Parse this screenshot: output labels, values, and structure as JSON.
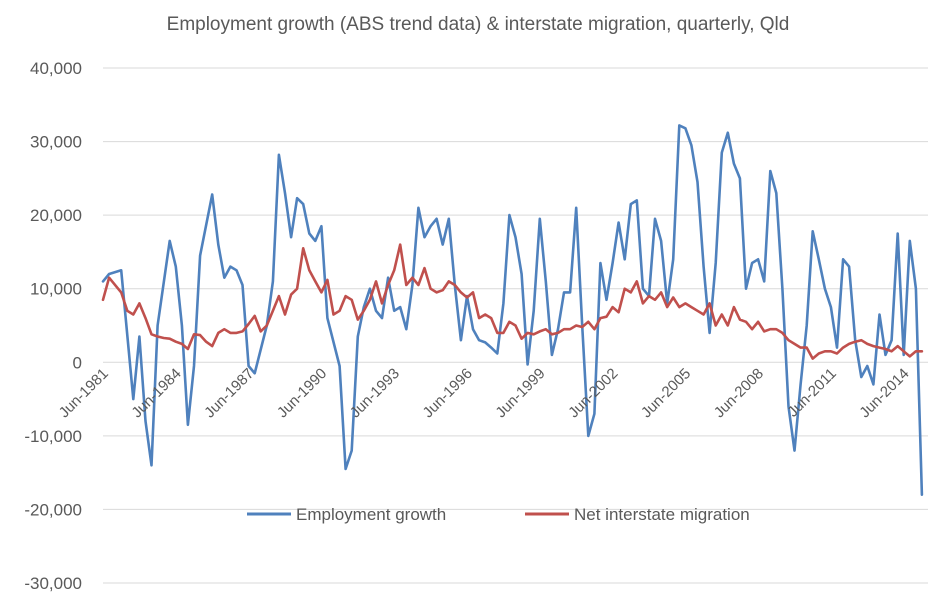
{
  "chart_data": {
    "type": "line",
    "title": "Employment growth (ABS trend data) & interstate migration, quarterly, Qld",
    "xlabel": "",
    "ylabel": "",
    "ylim": [
      -30000,
      40000
    ],
    "yticks": [
      40000,
      30000,
      20000,
      10000,
      0,
      -10000,
      -20000,
      -30000
    ],
    "ytick_labels": [
      "40,000",
      "30,000",
      "20,000",
      "10,000",
      "0",
      "-10,000",
      "-20,000",
      "-30,000"
    ],
    "xlim": [
      1981.25,
      2015.25
    ],
    "xticks": [
      1981.5,
      1984.5,
      1987.5,
      1990.5,
      1993.5,
      1996.5,
      1999.5,
      2002.5,
      2005.5,
      2008.5,
      2011.5,
      2014.5
    ],
    "xtick_labels": [
      "Jun-1981",
      "Jun-1984",
      "Jun-1987",
      "Jun-1990",
      "Jun-1993",
      "Jun-1996",
      "Jun-1999",
      "Jun-2002",
      "Jun-2005",
      "Jun-2008",
      "Jun-2011",
      "Jun-2014"
    ],
    "grid": true,
    "legend": "inside-bottom",
    "series": [
      {
        "name": "Employment growth",
        "color": "#4f81bd",
        "points": [
          [
            1981.25,
            11000
          ],
          [
            1981.5,
            12000
          ],
          [
            1982.0,
            12500
          ],
          [
            1982.5,
            -5000
          ],
          [
            1982.75,
            3500
          ],
          [
            1983.0,
            -8000
          ],
          [
            1983.25,
            -14000
          ],
          [
            1983.5,
            5000
          ],
          [
            1984.0,
            16500
          ],
          [
            1984.25,
            13000
          ],
          [
            1984.5,
            5000
          ],
          [
            1984.75,
            -8500
          ],
          [
            1985.0,
            -500
          ],
          [
            1985.25,
            14500
          ],
          [
            1985.75,
            22800
          ],
          [
            1986.0,
            16000
          ],
          [
            1986.25,
            11500
          ],
          [
            1986.5,
            13000
          ],
          [
            1986.75,
            12500
          ],
          [
            1987.0,
            10500
          ],
          [
            1987.25,
            -500
          ],
          [
            1987.5,
            -1500
          ],
          [
            1988.0,
            5000
          ],
          [
            1988.25,
            11000
          ],
          [
            1988.5,
            28200
          ],
          [
            1988.75,
            23000
          ],
          [
            1989.0,
            17000
          ],
          [
            1989.25,
            22300
          ],
          [
            1989.5,
            21500
          ],
          [
            1989.75,
            17500
          ],
          [
            1990.0,
            16500
          ],
          [
            1990.25,
            18500
          ],
          [
            1990.5,
            6000
          ],
          [
            1991.0,
            -500
          ],
          [
            1991.25,
            -14500
          ],
          [
            1991.5,
            -12000
          ],
          [
            1991.75,
            3500
          ],
          [
            1992.0,
            7500
          ],
          [
            1992.25,
            10000
          ],
          [
            1992.5,
            7000
          ],
          [
            1992.75,
            6000
          ],
          [
            1993.0,
            11500
          ],
          [
            1993.25,
            7000
          ],
          [
            1993.5,
            7500
          ],
          [
            1993.75,
            4500
          ],
          [
            1994.0,
            10500
          ],
          [
            1994.25,
            21000
          ],
          [
            1994.5,
            17000
          ],
          [
            1994.75,
            18500
          ],
          [
            1995.0,
            19500
          ],
          [
            1995.25,
            16000
          ],
          [
            1995.5,
            19500
          ],
          [
            1995.75,
            10500
          ],
          [
            1996.0,
            3000
          ],
          [
            1996.25,
            9000
          ],
          [
            1996.5,
            4500
          ],
          [
            1996.75,
            3000
          ],
          [
            1997.0,
            2700
          ],
          [
            1997.25,
            2000
          ],
          [
            1997.5,
            1200
          ],
          [
            1997.75,
            8000
          ],
          [
            1998.0,
            20000
          ],
          [
            1998.25,
            17000
          ],
          [
            1998.5,
            12000
          ],
          [
            1998.75,
            -300
          ],
          [
            1999.0,
            7000
          ],
          [
            1999.25,
            19500
          ],
          [
            1999.5,
            11000
          ],
          [
            1999.75,
            1000
          ],
          [
            2000.0,
            4500
          ],
          [
            2000.25,
            9500
          ],
          [
            2000.5,
            9500
          ],
          [
            2000.75,
            21000
          ],
          [
            2001.0,
            5000
          ],
          [
            2001.25,
            -10000
          ],
          [
            2001.5,
            -7000
          ],
          [
            2001.75,
            13500
          ],
          [
            2002.0,
            8500
          ],
          [
            2002.25,
            13500
          ],
          [
            2002.5,
            19000
          ],
          [
            2002.75,
            14000
          ],
          [
            2003.0,
            21500
          ],
          [
            2003.25,
            22000
          ],
          [
            2003.5,
            10000
          ],
          [
            2003.75,
            9000
          ],
          [
            2004.0,
            19500
          ],
          [
            2004.25,
            16500
          ],
          [
            2004.5,
            8000
          ],
          [
            2004.75,
            14000
          ],
          [
            2005.0,
            32200
          ],
          [
            2005.25,
            31800
          ],
          [
            2005.5,
            29500
          ],
          [
            2005.75,
            24500
          ],
          [
            2006.0,
            13000
          ],
          [
            2006.25,
            4000
          ],
          [
            2006.5,
            13500
          ],
          [
            2006.75,
            28500
          ],
          [
            2007.0,
            31200
          ],
          [
            2007.25,
            27000
          ],
          [
            2007.5,
            25000
          ],
          [
            2007.75,
            10000
          ],
          [
            2008.0,
            13500
          ],
          [
            2008.25,
            14000
          ],
          [
            2008.5,
            11000
          ],
          [
            2008.75,
            26000
          ],
          [
            2009.0,
            23000
          ],
          [
            2009.25,
            10000
          ],
          [
            2009.5,
            -6000
          ],
          [
            2009.75,
            -12000
          ],
          [
            2010.0,
            -3000
          ],
          [
            2010.25,
            5000
          ],
          [
            2010.5,
            17800
          ],
          [
            2010.75,
            14000
          ],
          [
            2011.0,
            10000
          ],
          [
            2011.25,
            7500
          ],
          [
            2011.5,
            2000
          ],
          [
            2011.75,
            14000
          ],
          [
            2012.0,
            13000
          ],
          [
            2012.25,
            3000
          ],
          [
            2012.5,
            -2000
          ],
          [
            2012.75,
            -500
          ],
          [
            2013.0,
            -3000
          ],
          [
            2013.25,
            6500
          ],
          [
            2013.5,
            1000
          ],
          [
            2013.75,
            3000
          ],
          [
            2014.0,
            17500
          ],
          [
            2014.25,
            1000
          ],
          [
            2014.5,
            16500
          ],
          [
            2014.75,
            10000
          ],
          [
            2015.0,
            -18000
          ]
        ]
      },
      {
        "name": "Net interstate migration",
        "color": "#c0504d",
        "points": [
          [
            1981.25,
            8500
          ],
          [
            1981.5,
            11500
          ],
          [
            1982.0,
            9500
          ],
          [
            1982.25,
            7000
          ],
          [
            1982.5,
            6500
          ],
          [
            1982.75,
            8000
          ],
          [
            1983.0,
            6000
          ],
          [
            1983.25,
            3800
          ],
          [
            1983.5,
            3500
          ],
          [
            1983.75,
            3300
          ],
          [
            1984.0,
            3200
          ],
          [
            1984.25,
            2800
          ],
          [
            1984.5,
            2500
          ],
          [
            1984.75,
            1800
          ],
          [
            1985.0,
            3800
          ],
          [
            1985.25,
            3700
          ],
          [
            1985.5,
            2800
          ],
          [
            1985.75,
            2200
          ],
          [
            1986.0,
            4000
          ],
          [
            1986.25,
            4500
          ],
          [
            1986.5,
            4000
          ],
          [
            1986.75,
            4000
          ],
          [
            1987.0,
            4200
          ],
          [
            1987.25,
            5200
          ],
          [
            1987.5,
            6300
          ],
          [
            1987.75,
            4200
          ],
          [
            1988.0,
            5000
          ],
          [
            1988.25,
            7000
          ],
          [
            1988.5,
            9000
          ],
          [
            1988.75,
            6500
          ],
          [
            1989.0,
            9200
          ],
          [
            1989.25,
            10000
          ],
          [
            1989.5,
            15500
          ],
          [
            1989.75,
            12500
          ],
          [
            1990.0,
            11000
          ],
          [
            1990.25,
            9500
          ],
          [
            1990.5,
            11200
          ],
          [
            1990.75,
            6500
          ],
          [
            1991.0,
            7000
          ],
          [
            1991.25,
            9000
          ],
          [
            1991.5,
            8500
          ],
          [
            1991.75,
            5800
          ],
          [
            1992.0,
            7000
          ],
          [
            1992.25,
            8500
          ],
          [
            1992.5,
            11000
          ],
          [
            1992.75,
            8000
          ],
          [
            1993.0,
            10500
          ],
          [
            1993.25,
            12500
          ],
          [
            1993.5,
            16000
          ],
          [
            1993.75,
            10500
          ],
          [
            1994.0,
            11500
          ],
          [
            1994.25,
            10500
          ],
          [
            1994.5,
            12800
          ],
          [
            1994.75,
            10000
          ],
          [
            1995.0,
            9500
          ],
          [
            1995.25,
            9800
          ],
          [
            1995.5,
            11000
          ],
          [
            1995.75,
            10500
          ],
          [
            1996.0,
            9500
          ],
          [
            1996.25,
            8800
          ],
          [
            1996.5,
            9500
          ],
          [
            1996.75,
            6000
          ],
          [
            1997.0,
            6500
          ],
          [
            1997.25,
            6000
          ],
          [
            1997.5,
            4000
          ],
          [
            1997.75,
            4000
          ],
          [
            1998.0,
            5500
          ],
          [
            1998.25,
            5000
          ],
          [
            1998.5,
            3200
          ],
          [
            1998.75,
            4000
          ],
          [
            1999.0,
            3800
          ],
          [
            1999.25,
            4200
          ],
          [
            1999.5,
            4500
          ],
          [
            1999.75,
            3800
          ],
          [
            2000.0,
            4000
          ],
          [
            2000.25,
            4500
          ],
          [
            2000.5,
            4500
          ],
          [
            2000.75,
            5000
          ],
          [
            2001.0,
            4800
          ],
          [
            2001.25,
            5500
          ],
          [
            2001.5,
            4500
          ],
          [
            2001.75,
            6000
          ],
          [
            2002.0,
            6200
          ],
          [
            2002.25,
            7500
          ],
          [
            2002.5,
            6800
          ],
          [
            2002.75,
            10000
          ],
          [
            2003.0,
            9500
          ],
          [
            2003.25,
            11000
          ],
          [
            2003.5,
            8000
          ],
          [
            2003.75,
            9000
          ],
          [
            2004.0,
            8500
          ],
          [
            2004.25,
            9500
          ],
          [
            2004.5,
            7500
          ],
          [
            2004.75,
            8800
          ],
          [
            2005.0,
            7500
          ],
          [
            2005.25,
            8000
          ],
          [
            2005.5,
            7500
          ],
          [
            2005.75,
            7000
          ],
          [
            2006.0,
            6500
          ],
          [
            2006.25,
            8000
          ],
          [
            2006.5,
            5000
          ],
          [
            2006.75,
            6500
          ],
          [
            2007.0,
            5000
          ],
          [
            2007.25,
            7500
          ],
          [
            2007.5,
            5800
          ],
          [
            2007.75,
            5500
          ],
          [
            2008.0,
            4500
          ],
          [
            2008.25,
            5500
          ],
          [
            2008.5,
            4200
          ],
          [
            2008.75,
            4500
          ],
          [
            2009.0,
            4500
          ],
          [
            2009.25,
            4000
          ],
          [
            2009.5,
            3000
          ],
          [
            2009.75,
            2500
          ],
          [
            2010.0,
            2000
          ],
          [
            2010.25,
            2000
          ],
          [
            2010.5,
            500
          ],
          [
            2010.75,
            1200
          ],
          [
            2011.0,
            1500
          ],
          [
            2011.25,
            1500
          ],
          [
            2011.5,
            1200
          ],
          [
            2011.75,
            2000
          ],
          [
            2012.0,
            2500
          ],
          [
            2012.25,
            2800
          ],
          [
            2012.5,
            3000
          ],
          [
            2012.75,
            2500
          ],
          [
            2013.0,
            2200
          ],
          [
            2013.25,
            2000
          ],
          [
            2013.5,
            1800
          ],
          [
            2013.75,
            1500
          ],
          [
            2014.0,
            2200
          ],
          [
            2014.25,
            1500
          ],
          [
            2014.5,
            800
          ],
          [
            2014.75,
            1500
          ],
          [
            2015.0,
            1500
          ]
        ]
      }
    ]
  }
}
